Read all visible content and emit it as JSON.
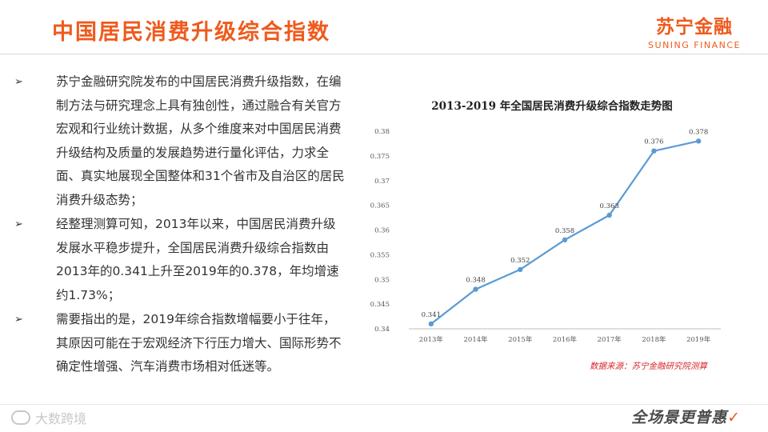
{
  "header": {
    "title": "中国居民消费升级综合指数",
    "logo_cn": "苏宁金融",
    "logo_en": "SUNING FINANCE"
  },
  "bullets": [
    {
      "mark": "➢",
      "text": "苏宁金融研究院发布的中国居民消费升级指数，在编制方法与研究理念上具有独创性，通过融合有关官方宏观和行业统计数据，从多个维度来对中国居民消费升级结构及质量的发展趋势进行量化评估，力求全面、真实地展现全国整体和31个省市及自治区的居民消费升级态势；"
    },
    {
      "mark": "➢",
      "text": "经整理测算可知，2013年以来，中国居民消费升级发展水平稳步提升，全国居民消费升级综合指数由2013年的0.341上升至2019年的0.378，年均增速约1.73%；"
    },
    {
      "mark": "➢",
      "text": "需要指出的是，2019年综合指数增幅要小于往年，其原因可能在于宏观经济下行压力增大、国际形势不确定性增强、汽车消费市场相对低迷等。"
    }
  ],
  "chart_data": {
    "type": "line",
    "title": "2013-2019 年全国居民消费升级综合指数走势图",
    "categories": [
      "2013年",
      "2014年",
      "2015年",
      "2016年",
      "2017年",
      "2018年",
      "2019年"
    ],
    "values": [
      0.341,
      0.348,
      0.352,
      0.358,
      0.363,
      0.376,
      0.378
    ],
    "data_labels": [
      "0.341",
      "0.348",
      "0.352",
      "0.358",
      "0.363",
      "0.376",
      "0.378"
    ],
    "y_ticks": [
      "0.34",
      "0.345",
      "0.35",
      "0.355",
      "0.36",
      "0.365",
      "0.37",
      "0.375",
      "0.38"
    ],
    "ylim": [
      0.34,
      0.38
    ],
    "line_color": "#5b9bd5",
    "grid": false,
    "legend": "none"
  },
  "source": "数据来源：苏宁金融研究院测算",
  "footer": {
    "watermark": "大数跨境",
    "slogan": "全场景更普惠"
  },
  "colors": {
    "accent": "#ef5a1c",
    "source_text": "#d9262c"
  }
}
